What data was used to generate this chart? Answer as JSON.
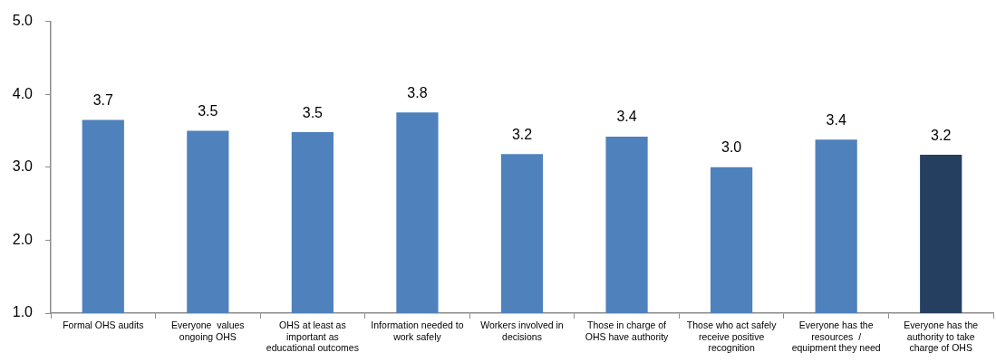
{
  "chart_data": {
    "type": "bar",
    "categories": [
      "Formal OHS audits",
      "Everyone  values ongoing OHS",
      "OHS at least as important as educational outcomes",
      "Information needed to work safely",
      "Workers involved in decisions",
      "Those in charge of OHS have authority",
      "Those who act safely receive positive recognition",
      "Everyone has the resources  / equipment they need",
      "Everyone has the authority to take charge of OHS"
    ],
    "values": [
      3.65,
      3.5,
      3.48,
      3.75,
      3.18,
      3.42,
      3.0,
      3.38,
      3.17
    ],
    "value_labels": [
      "3.7",
      "3.5",
      "3.5",
      "3.8",
      "3.2",
      "3.4",
      "3.0",
      "3.4",
      "3.2"
    ],
    "colors": [
      "#4f81bd",
      "#4f81bd",
      "#4f81bd",
      "#4f81bd",
      "#4f81bd",
      "#4f81bd",
      "#4f81bd",
      "#4f81bd",
      "#243f60"
    ],
    "ylim": [
      1,
      5
    ],
    "yticks": [
      {
        "value": 1,
        "label": "1.0"
      },
      {
        "value": 2,
        "label": "2.0"
      },
      {
        "value": 3,
        "label": "3.0"
      },
      {
        "value": 4,
        "label": "4.0"
      },
      {
        "value": 5,
        "label": "5.0"
      }
    ],
    "grid": false
  }
}
